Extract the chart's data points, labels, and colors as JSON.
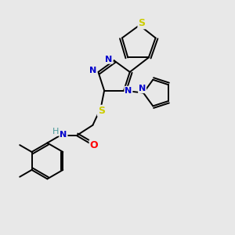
{
  "bg_color": "#e8e8e8",
  "atom_colors": {
    "C": "#000000",
    "N": "#0000cc",
    "S": "#cccc00",
    "O": "#ff0000",
    "H": "#4a9a9a"
  },
  "bond_color": "#000000",
  "bond_lw": 1.4,
  "figsize": [
    3.0,
    3.0
  ],
  "dpi": 100
}
